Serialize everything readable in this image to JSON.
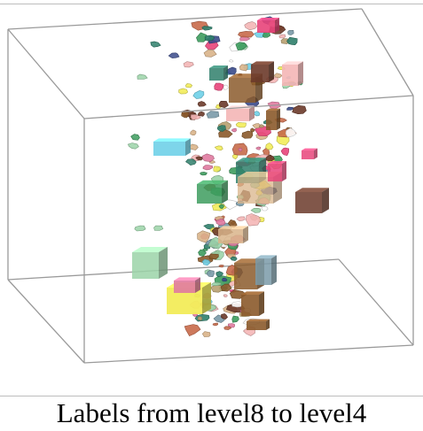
{
  "caption": "Labels from level8 to level4",
  "colors": {
    "box_edge": "#9a9a9a",
    "rule": "#bdbdbd",
    "palette": [
      "#8b5a2b",
      "#e8447a",
      "#3d9c5e",
      "#f4b6b6",
      "#6fd0e8",
      "#f2ec5a",
      "#6b3a2a",
      "#d9b48a",
      "#2f7f6b",
      "#b8a070",
      "#e07aa0",
      "#9bd3a8",
      "#3a4a8a",
      "#c86a4a",
      "#ffffff",
      "#7a9aa8"
    ]
  }
}
